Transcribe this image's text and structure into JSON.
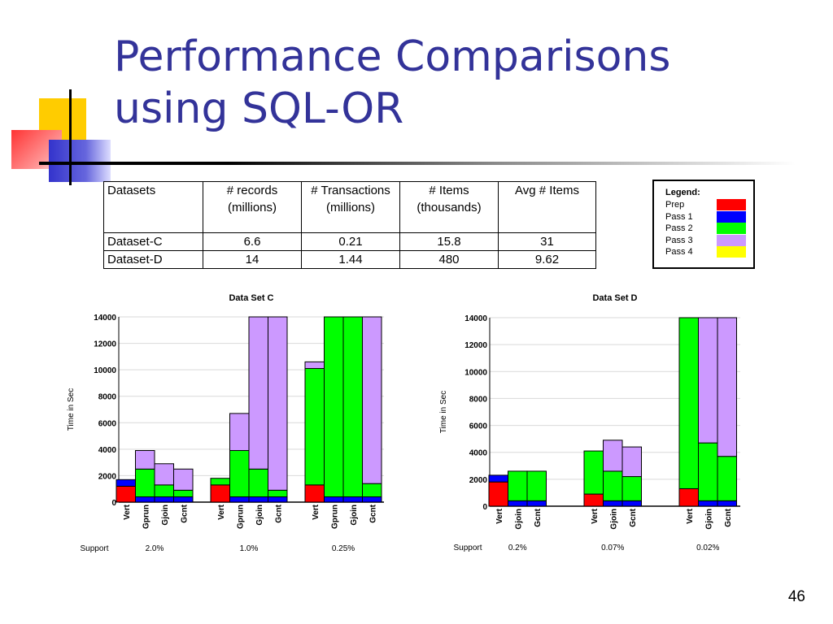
{
  "slide": {
    "title_line1": "Performance Comparisons",
    "title_line2": "using SQL-OR",
    "page_number": "46",
    "title_color": "#333399"
  },
  "table": {
    "headers": [
      {
        "l1": "Datasets",
        "l2": ""
      },
      {
        "l1": "# records",
        "l2": "(millions)"
      },
      {
        "l1": "# Transactions",
        "l2": "(millions)"
      },
      {
        "l1": "# Items",
        "l2": "(thousands)"
      },
      {
        "l1": "Avg # Items",
        "l2": ""
      }
    ],
    "rows": [
      [
        "Dataset-C",
        "6.6",
        "0.21",
        "15.8",
        "31"
      ],
      [
        "Dataset-D",
        "14",
        "1.44",
        "480",
        "9.62"
      ]
    ]
  },
  "legend": {
    "title": "Legend:",
    "items": [
      {
        "label": "Prep",
        "color": "#ff0000"
      },
      {
        "label": "Pass 1",
        "color": "#0000ff"
      },
      {
        "label": "Pass 2",
        "color": "#00ff00"
      },
      {
        "label": "Pass 3",
        "color": "#cc99ff"
      },
      {
        "label": "Pass 4",
        "color": "#ffff00"
      }
    ]
  },
  "chart_data": [
    {
      "type": "bar",
      "stacked": true,
      "title": "Data Set C",
      "ylabel": "Time in Sec",
      "ylim": [
        0,
        14000
      ],
      "yticks": [
        0,
        2000,
        4000,
        6000,
        8000,
        10000,
        12000,
        14000
      ],
      "support_label": "Support",
      "series_names": [
        "Prep",
        "Pass 1",
        "Pass 2",
        "Pass 3"
      ],
      "groups": [
        {
          "support": "2.0%",
          "bars": [
            {
              "label": "Vert",
              "values": [
                1200,
                500,
                0,
                0
              ]
            },
            {
              "label": "Gprun",
              "values": [
                0,
                400,
                2100,
                1400
              ]
            },
            {
              "label": "Gjoin",
              "values": [
                0,
                400,
                900,
                1600
              ]
            },
            {
              "label": "Gcnt",
              "values": [
                0,
                400,
                500,
                1600
              ]
            }
          ]
        },
        {
          "support": "1.0%",
          "bars": [
            {
              "label": "Vert",
              "values": [
                1300,
                0,
                500,
                0
              ]
            },
            {
              "label": "Gprun",
              "values": [
                0,
                400,
                3500,
                2800
              ]
            },
            {
              "label": "Gjoin",
              "values": [
                0,
                400,
                2100,
                11500
              ]
            },
            {
              "label": "Gcnt",
              "values": [
                0,
                400,
                500,
                13100
              ]
            }
          ]
        },
        {
          "support": "0.25%",
          "bars": [
            {
              "label": "Vert",
              "values": [
                1300,
                0,
                8800,
                500
              ]
            },
            {
              "label": "Gprun",
              "values": [
                0,
                400,
                13600,
                0
              ]
            },
            {
              "label": "Gjoin",
              "values": [
                0,
                400,
                13600,
                0
              ]
            },
            {
              "label": "Gcnt",
              "values": [
                0,
                400,
                1000,
                12600
              ]
            }
          ]
        }
      ]
    },
    {
      "type": "bar",
      "stacked": true,
      "title": "Data Set D",
      "ylabel": "Time in Sec",
      "ylim": [
        0,
        14000
      ],
      "yticks": [
        0,
        2000,
        4000,
        6000,
        8000,
        10000,
        12000,
        14000
      ],
      "support_label": "Support",
      "series_names": [
        "Prep",
        "Pass 1",
        "Pass 2",
        "Pass 3"
      ],
      "groups": [
        {
          "support": "0.2%",
          "bars": [
            {
              "label": "Vert",
              "values": [
                1800,
                500,
                0,
                0
              ]
            },
            {
              "label": "Gjoin",
              "values": [
                0,
                400,
                2200,
                0
              ]
            },
            {
              "label": "Gcnt",
              "values": [
                0,
                400,
                2200,
                0
              ]
            }
          ]
        },
        {
          "support": "0.07%",
          "bars": [
            {
              "label": "Vert",
              "values": [
                900,
                0,
                3200,
                0
              ]
            },
            {
              "label": "Gjoin",
              "values": [
                0,
                400,
                2200,
                2300
              ]
            },
            {
              "label": "Gcnt",
              "values": [
                0,
                400,
                1800,
                2200
              ]
            }
          ]
        },
        {
          "support": "0.02%",
          "bars": [
            {
              "label": "Vert",
              "values": [
                1300,
                0,
                12700,
                0
              ]
            },
            {
              "label": "Gjoin",
              "values": [
                0,
                400,
                4300,
                9300
              ]
            },
            {
              "label": "Gcnt",
              "values": [
                0,
                400,
                3300,
                10300
              ]
            }
          ]
        }
      ]
    }
  ]
}
